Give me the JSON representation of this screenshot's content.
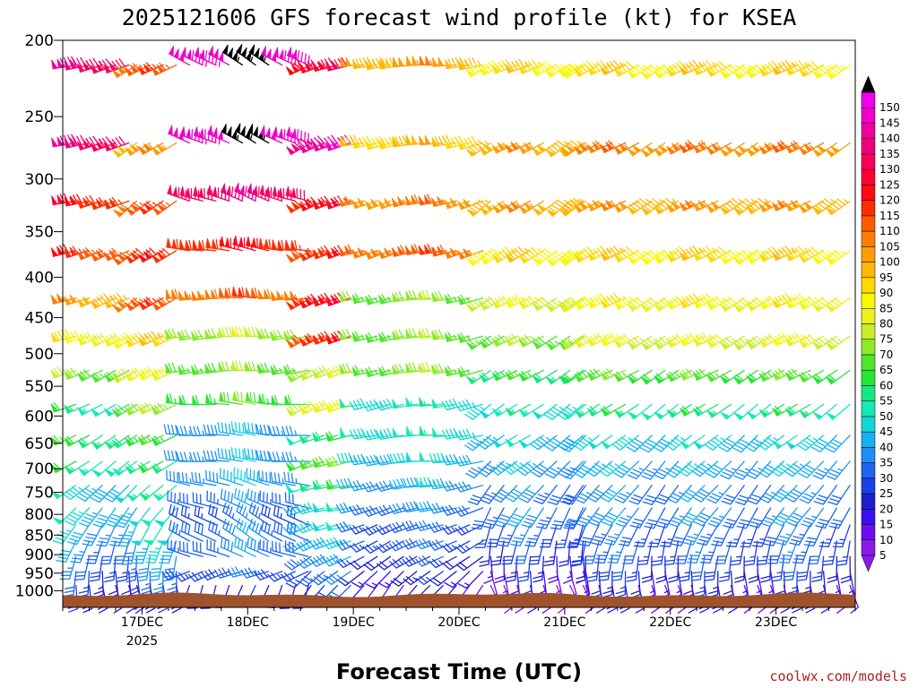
{
  "chart_data": {
    "type": "wind_barb_profile",
    "title": "2025121606 GFS forecast wind profile (kt) for KSEA",
    "xlabel": "Forecast Time (UTC)",
    "credit": "coolwx.com/models",
    "x_ticks": [
      "17DEC",
      "18DEC",
      "19DEC",
      "20DEC",
      "21DEC",
      "22DEC",
      "23DEC"
    ],
    "x_year_label": "2025",
    "x_range_days": [
      -0.75,
      6.75
    ],
    "y_levels": [
      200,
      250,
      300,
      350,
      400,
      450,
      500,
      550,
      600,
      650,
      700,
      750,
      800,
      850,
      900,
      950,
      1000
    ],
    "y_range": [
      200,
      1050
    ],
    "colorbar": {
      "unit": "kt",
      "values": [
        5,
        10,
        15,
        20,
        25,
        30,
        35,
        40,
        45,
        50,
        55,
        60,
        65,
        70,
        75,
        80,
        85,
        90,
        95,
        100,
        105,
        110,
        115,
        120,
        125,
        130,
        135,
        140,
        145,
        150
      ],
      "colors": [
        "#8a1ce8",
        "#6a0ef2",
        "#3a10ee",
        "#1e1ecc",
        "#1a40e6",
        "#1e64f0",
        "#1e8ef4",
        "#12b0f4",
        "#10d8d6",
        "#16e8b6",
        "#16e684",
        "#24e634",
        "#4ee62c",
        "#8cea2a",
        "#c8ee2c",
        "#ecf01c",
        "#f8f800",
        "#ffd800",
        "#ffb800",
        "#ff9c00",
        "#ff7c00",
        "#ff5a00",
        "#ff2c00",
        "#ff0a10",
        "#ff0030",
        "#f8005c",
        "#f0007c",
        "#f0009c",
        "#f000c8",
        "#ee00ee"
      ]
    },
    "terrain_color": "#a0522d",
    "wind_profile": {
      "levels_hpa": [
        215,
        270,
        320,
        370,
        425,
        475,
        525,
        580,
        635,
        685,
        735,
        785,
        825,
        865,
        905,
        945,
        985
      ],
      "segments": [
        {
          "from_day": -0.75,
          "to_day": -0.05,
          "speeds_kt": [
            135,
            135,
            120,
            115,
            100,
            85,
            70,
            55,
            60,
            55,
            45,
            45,
            40,
            35,
            30,
            25,
            20
          ],
          "dirs_deg": [
            255,
            255,
            255,
            250,
            250,
            250,
            245,
            245,
            240,
            235,
            230,
            220,
            210,
            200,
            190,
            180,
            170
          ]
        },
        {
          "from_day": -0.05,
          "to_day": 0.45,
          "speeds_kt": [
            110,
            100,
            110,
            115,
            110,
            90,
            80,
            70,
            60,
            55,
            50,
            45,
            45,
            40,
            35,
            30,
            20
          ],
          "dirs_deg": [
            240,
            235,
            230,
            235,
            235,
            240,
            240,
            240,
            240,
            235,
            225,
            215,
            205,
            195,
            185,
            175,
            165
          ]
        },
        {
          "from_day": 0.45,
          "to_day": 1.6,
          "speeds_kt": [
            150,
            150,
            135,
            120,
            110,
            75,
            70,
            65,
            40,
            40,
            40,
            35,
            30,
            35,
            35,
            30,
            20
          ],
          "dirs_deg": [
            300,
            295,
            290,
            280,
            270,
            265,
            265,
            275,
            275,
            275,
            285,
            290,
            300,
            300,
            290,
            250,
            200
          ]
        },
        {
          "from_day": 1.6,
          "to_day": 2.1,
          "speeds_kt": [
            125,
            140,
            120,
            115,
            120,
            115,
            75,
            80,
            55,
            65,
            55,
            45,
            45,
            40,
            35,
            30,
            25
          ],
          "dirs_deg": [
            250,
            245,
            245,
            245,
            245,
            245,
            245,
            245,
            250,
            250,
            255,
            255,
            250,
            245,
            240,
            230,
            220
          ]
        },
        {
          "from_day": 2.1,
          "to_day": 3.3,
          "speeds_kt": [
            100,
            95,
            105,
            110,
            70,
            70,
            70,
            50,
            50,
            45,
            40,
            35,
            30,
            30,
            25,
            20,
            15
          ],
          "dirs_deg": [
            265,
            260,
            255,
            255,
            260,
            260,
            260,
            260,
            265,
            265,
            260,
            255,
            250,
            245,
            240,
            230,
            220
          ]
        },
        {
          "from_day": 3.3,
          "to_day": 4.2,
          "speeds_kt": [
            90,
            100,
            100,
            90,
            80,
            70,
            60,
            50,
            45,
            40,
            35,
            35,
            30,
            25,
            20,
            15,
            10
          ],
          "dirs_deg": [
            245,
            240,
            235,
            235,
            240,
            240,
            240,
            235,
            235,
            230,
            220,
            210,
            200,
            190,
            180,
            170,
            160
          ]
        },
        {
          "from_day": 4.2,
          "to_day": 6.75,
          "speeds_kt": [
            90,
            105,
            100,
            90,
            85,
            80,
            65,
            55,
            45,
            40,
            35,
            35,
            30,
            30,
            25,
            20,
            15
          ],
          "dirs_deg": [
            240,
            240,
            240,
            240,
            240,
            240,
            240,
            235,
            230,
            225,
            220,
            215,
            205,
            195,
            185,
            175,
            165
          ]
        }
      ]
    }
  }
}
